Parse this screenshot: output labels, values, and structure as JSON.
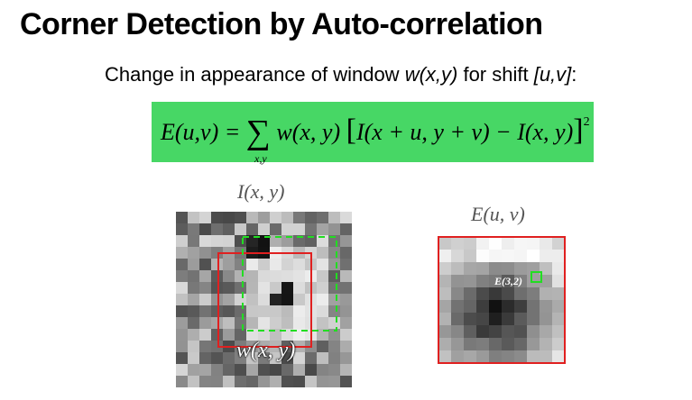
{
  "title": "Corner Detection by Auto-correlation",
  "subtitle": {
    "prefix": "Change in appearance of window ",
    "window": "w(x,y)",
    "middle": " for shift ",
    "shift": "[u,v]",
    "suffix": ":"
  },
  "formula": {
    "lhs": "E(u,v) =",
    "sum_symbol": "∑",
    "sum_index": "x,y",
    "weight": "w(x, y)",
    "open_bracket": "[",
    "body": "I(x + u, y + v) − I(x, y)",
    "close_bracket": "]",
    "exponent": "2"
  },
  "left_image": {
    "caption": "I(x, y)",
    "window_label": "w(x, y)"
  },
  "right_image": {
    "caption": "E(u, v)",
    "point_label": "E(3,2)"
  },
  "colors": {
    "formula_bg": "#47d765",
    "window_red": "#e02020",
    "window_green": "#22dd22"
  }
}
